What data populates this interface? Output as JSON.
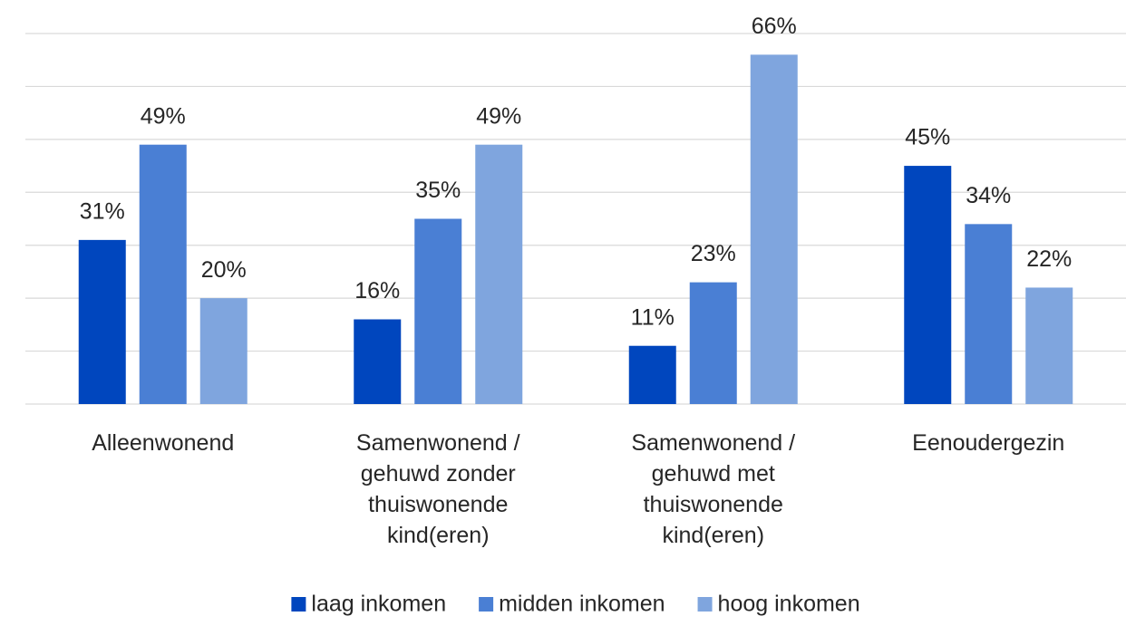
{
  "chart_data": {
    "type": "bar",
    "categories": [
      "Alleenwonend",
      "Samenwonend / gehuwd zonder thuiswonende kind(eren)",
      "Samenwonend / gehuwd met thuiswonende kind(eren)",
      "Eenoudergezin"
    ],
    "series": [
      {
        "name": "laag inkomen",
        "color": "#0046be",
        "values": [
          31,
          16,
          11,
          45
        ],
        "value_labels": [
          "31%",
          "16%",
          "11%",
          "45%"
        ]
      },
      {
        "name": "midden inkomen",
        "color": "#4a7fd4",
        "values": [
          49,
          35,
          23,
          34
        ],
        "value_labels": [
          "49%",
          "35%",
          "23%",
          "34%"
        ]
      },
      {
        "name": "hoog inkomen",
        "color": "#7fa5de",
        "values": [
          20,
          49,
          66,
          22
        ],
        "value_labels": [
          "20%",
          "49%",
          "66%",
          "22%"
        ]
      }
    ],
    "ylim": [
      0,
      70
    ],
    "yticks": [
      0,
      10,
      20,
      30,
      40,
      50,
      60,
      70
    ],
    "grid": true,
    "legend": "bottom"
  }
}
